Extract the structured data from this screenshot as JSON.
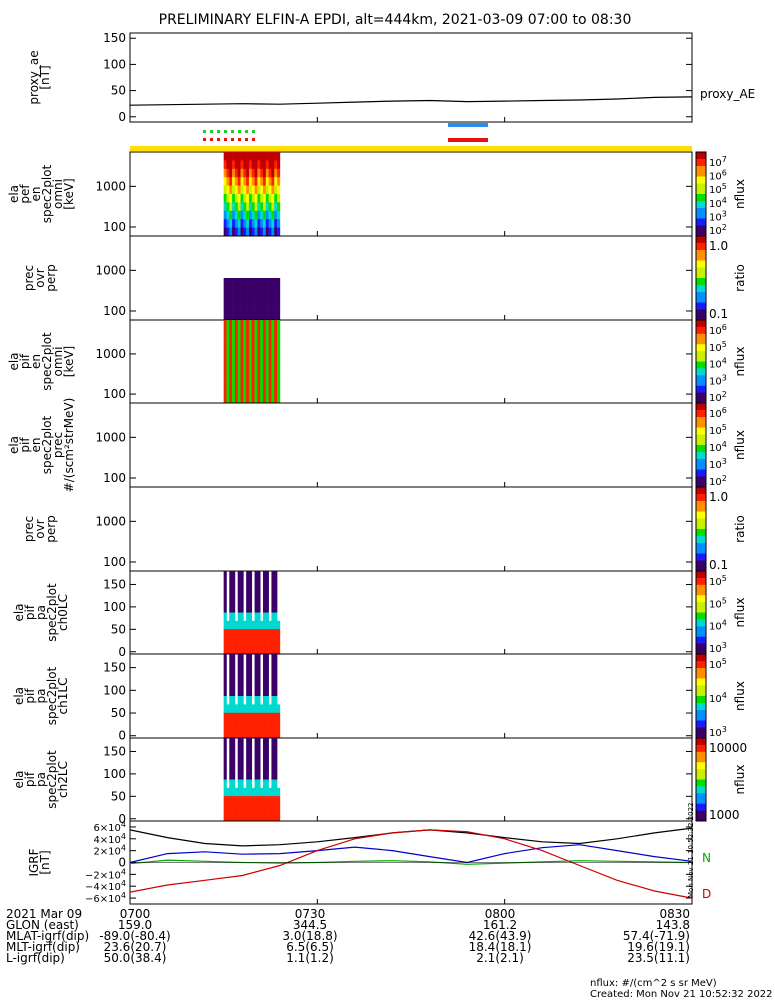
{
  "title": "PRELIMINARY ELFIN-A EPDI, alt=444km, 2021-03-09 07:00 to 08:30",
  "chart_data": [
    {
      "type": "line",
      "panel_id": "proxy_ae",
      "ylabel_lines": [
        "proxy_ae",
        "[nT]"
      ],
      "ylim": [
        -10,
        160
      ],
      "yticks": [
        "0",
        "50",
        "100",
        "150"
      ],
      "yticks_values": [
        0,
        50,
        100,
        150
      ],
      "series": [
        {
          "name": "proxy_AE",
          "color": "#000000",
          "x_min": [
            0,
            6,
            12,
            18,
            24,
            30,
            36,
            42,
            48,
            54,
            60,
            66,
            72,
            78,
            84,
            90
          ],
          "values": [
            22,
            23,
            24,
            25,
            24,
            26,
            28,
            30,
            31,
            29,
            30,
            31,
            32,
            34,
            37,
            38
          ]
        }
      ]
    },
    {
      "type": "heatmap",
      "panel_id": "pef_en_omni",
      "ylabel_lines": [
        "ela",
        "pef",
        "en",
        "spec2plot",
        "omni",
        "[keV]"
      ],
      "ylog": true,
      "ylim": [
        60,
        7000
      ],
      "yticks": [
        "100",
        "1000"
      ],
      "colorbar": {
        "label": "nflux",
        "ticks": [
          "10^7",
          "10^6",
          "10^5",
          "10^4",
          "10^3",
          "10^2"
        ]
      },
      "active_range_min": [
        15,
        24
      ]
    },
    {
      "type": "heatmap",
      "panel_id": "pef_prec_ovr_perp",
      "ylabel_lines": [
        "prec",
        "ovr",
        "perp"
      ],
      "ylog": true,
      "ylim": [
        60,
        7000
      ],
      "yticks": [
        "100",
        "1000"
      ],
      "colorbar": {
        "label": "ratio",
        "ticks": [
          "1.0",
          "0.1"
        ]
      },
      "active_range_min": [
        15,
        24
      ]
    },
    {
      "type": "heatmap",
      "panel_id": "pif_en_omni",
      "ylabel_lines": [
        "ela",
        "pif",
        "en",
        "spec2plot",
        "omni",
        "[keV]"
      ],
      "ylog": true,
      "ylim": [
        60,
        7000
      ],
      "yticks": [
        "100",
        "1000"
      ],
      "colorbar": {
        "label": "nflux",
        "ticks": [
          "10^6",
          "10^5",
          "10^4",
          "10^3",
          "10^2"
        ]
      },
      "active_range_min": [
        15,
        24
      ]
    },
    {
      "type": "heatmap",
      "panel_id": "pif_en_prec",
      "ylabel_lines": [
        "ela",
        "pif",
        "en",
        "spec2plot",
        "prec",
        "#/(scm²strMeV)"
      ],
      "ylog": true,
      "ylim": [
        60,
        7000
      ],
      "yticks": [
        "100",
        "1000"
      ],
      "colorbar": {
        "label": "nflux",
        "ticks": [
          "10^6",
          "10^5",
          "10^4",
          "10^3",
          "10^2"
        ]
      }
    },
    {
      "type": "heatmap",
      "panel_id": "pif_prec_ovr_perp",
      "ylabel_lines": [
        "prec",
        "ovr",
        "perp"
      ],
      "ylog": true,
      "ylim": [
        60,
        7000
      ],
      "yticks": [
        "100",
        "1000"
      ],
      "colorbar": {
        "label": "ratio",
        "ticks": [
          "1.0",
          "0.1"
        ]
      }
    },
    {
      "type": "heatmap",
      "panel_id": "pif_pa_ch0LC",
      "ylabel_lines": [
        "ela",
        "pif",
        "pa",
        "spec2plot",
        "ch0LC"
      ],
      "ylim": [
        -5,
        180
      ],
      "yticks": [
        "0",
        "50",
        "100",
        "150"
      ],
      "yticks_values": [
        0,
        50,
        100,
        150
      ],
      "colorbar": {
        "label": "nflux",
        "ticks": [
          "10^5",
          "10^5",
          "10^4",
          "10^3"
        ]
      },
      "active_range_min": [
        15,
        24
      ]
    },
    {
      "type": "heatmap",
      "panel_id": "pif_pa_ch1LC",
      "ylabel_lines": [
        "ela",
        "pif",
        "pa",
        "spec2plot",
        "ch1LC"
      ],
      "ylim": [
        -5,
        180
      ],
      "yticks": [
        "0",
        "50",
        "100",
        "150"
      ],
      "yticks_values": [
        0,
        50,
        100,
        150
      ],
      "colorbar": {
        "label": "nflux",
        "ticks": [
          "10^5",
          "10^4",
          "10^3"
        ]
      },
      "active_range_min": [
        15,
        24
      ]
    },
    {
      "type": "heatmap",
      "panel_id": "pif_pa_ch2LC",
      "ylabel_lines": [
        "ela",
        "pif",
        "pa",
        "spec2plot",
        "ch2LC"
      ],
      "ylim": [
        -5,
        180
      ],
      "yticks": [
        "0",
        "50",
        "100",
        "150"
      ],
      "yticks_values": [
        0,
        50,
        100,
        150
      ],
      "colorbar": {
        "label": "nflux",
        "ticks": [
          "10000",
          "1000"
        ]
      },
      "active_range_min": [
        15,
        24
      ]
    },
    {
      "type": "line",
      "panel_id": "igrf",
      "ylabel_lines": [
        "IGRF",
        "[nT]"
      ],
      "ylim": [
        -70000,
        70000
      ],
      "yticks": [
        "6×10^4",
        "4×10^4",
        "2×10^4",
        "0",
        "−2×10^4",
        "−4×10^4",
        "−6×10^4"
      ],
      "yticks_values": [
        60000,
        40000,
        20000,
        0,
        -20000,
        -40000,
        -60000
      ],
      "series": [
        {
          "name": "",
          "color": "#000000",
          "x_min": [
            0,
            6,
            12,
            18,
            24,
            30,
            36,
            42,
            48,
            54,
            60,
            66,
            72,
            78,
            84,
            90
          ],
          "values": [
            55000,
            42000,
            32000,
            28000,
            30000,
            35000,
            42000,
            50000,
            55000,
            50000,
            42000,
            35000,
            32000,
            40000,
            50000,
            58000
          ]
        },
        {
          "name": "N",
          "color": "#0000cc",
          "x_min": [
            0,
            6,
            12,
            18,
            24,
            30,
            36,
            42,
            48,
            54,
            60,
            66,
            72,
            78,
            84,
            90
          ],
          "values": [
            0,
            15000,
            18000,
            14000,
            15000,
            20000,
            26000,
            20000,
            10000,
            0,
            15000,
            25000,
            30000,
            20000,
            10000,
            2000
          ]
        },
        {
          "name": "",
          "color": "#00aa00",
          "x_min": [
            0,
            6,
            12,
            18,
            24,
            30,
            36,
            42,
            48,
            54,
            60,
            66,
            72,
            78,
            84,
            90
          ],
          "values": [
            -2000,
            4000,
            2000,
            0,
            -1000,
            0,
            2000,
            3000,
            1000,
            -3000,
            -1000,
            1000,
            3000,
            2000,
            1000,
            0
          ]
        },
        {
          "name": "D",
          "color": "#cc0000",
          "x_min": [
            0,
            6,
            12,
            18,
            24,
            30,
            36,
            42,
            48,
            54,
            60,
            66,
            72,
            78,
            84,
            90
          ],
          "values": [
            -50000,
            -38000,
            -30000,
            -22000,
            -5000,
            20000,
            40000,
            50000,
            55000,
            52000,
            40000,
            20000,
            -5000,
            -30000,
            -48000,
            -60000
          ]
        }
      ]
    }
  ],
  "legend_labels": {
    "proxy": "proxy_AE",
    "n": "N",
    "d": "D"
  },
  "x_axis": {
    "ticks": [
      "0700",
      "0730",
      "0800",
      "0830"
    ],
    "tick_minutes": [
      0,
      30,
      60,
      90
    ]
  },
  "ephemeris": {
    "rows": [
      {
        "label": "2021 Mar 09",
        "values": [
          "0700",
          "0730",
          "0800",
          "0830"
        ]
      },
      {
        "label": "GLON (east)",
        "values": [
          "159.0",
          "344.5",
          "161.2",
          "143.8"
        ]
      },
      {
        "label": "MLAT-igrf(dip)",
        "values": [
          "-89.0(-80.4)",
          "3.0(18.8)",
          "42.6(43.9)",
          "57.4(-71.9)"
        ]
      },
      {
        "label": "MLT-igrf(dip)",
        "values": [
          "23.6(20.7)",
          "6.5(6.5)",
          "18.4(18.1)",
          "19.6(19.1)"
        ]
      },
      {
        "label": "L-igrf(dip)",
        "values": [
          "50.0(38.4)",
          "1.1(1.2)",
          "2.1(2.1)",
          "23.5(11.1)"
        ]
      }
    ]
  },
  "footer": {
    "nflux_note": "nflux: #/(cm^2 s sr MeV)",
    "created": "Created: Mon Nov 21 10:52:32 2022",
    "side_stamp": "Mon Nov 21 10:52:32 2022"
  },
  "colors": {
    "band_yellow": "#ffdd00",
    "bar_blue": "#2a8ff0",
    "bar_red": "#e81010",
    "tick_green": "#22cc22"
  }
}
